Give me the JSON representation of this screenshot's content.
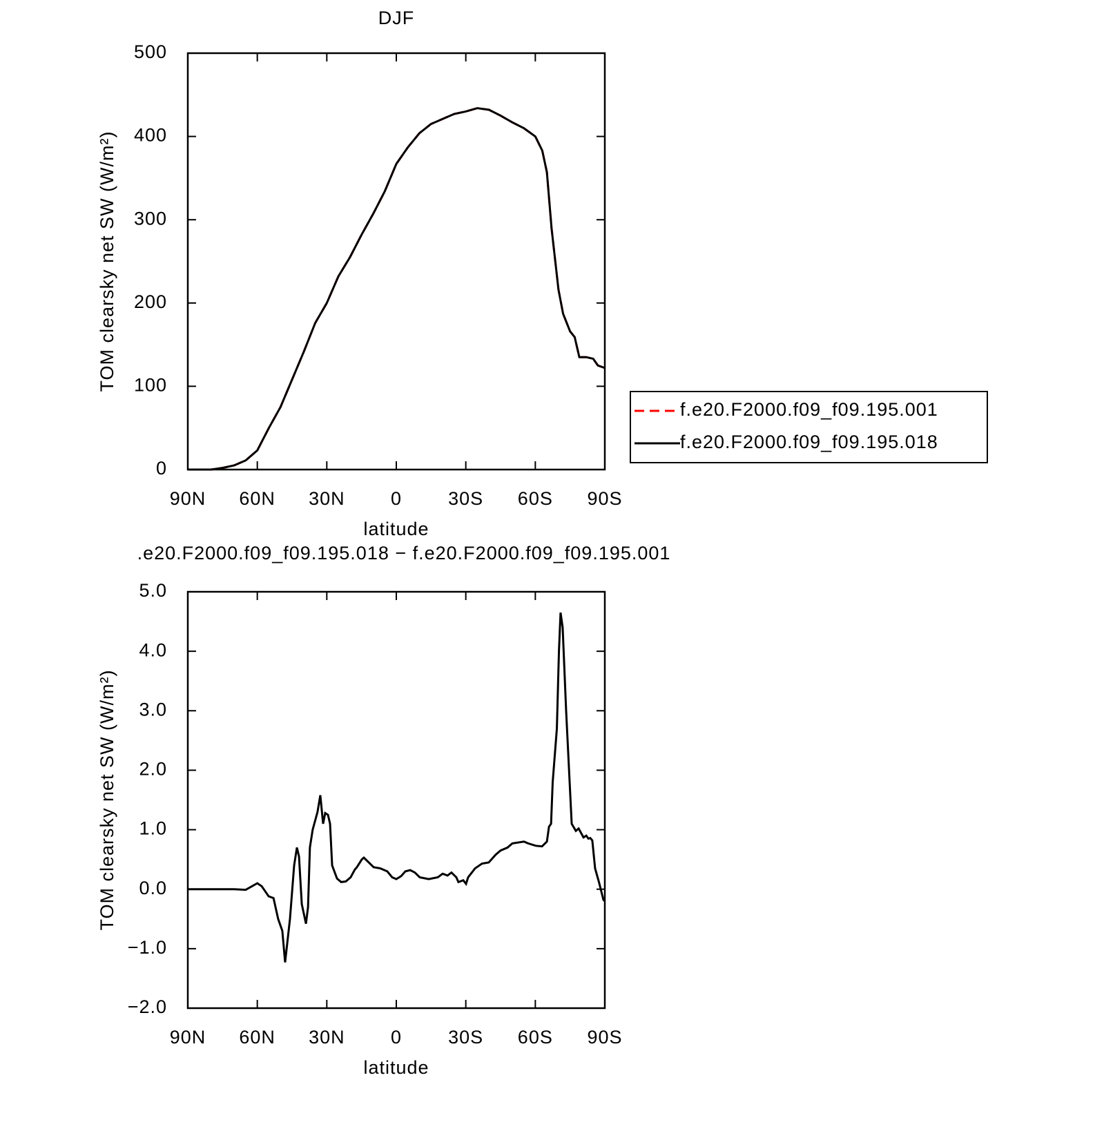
{
  "chart_data": [
    {
      "type": "line",
      "title": "DJF",
      "xlabel": "latitude",
      "ylabel": "TOM clearsky net SW (W/m²)",
      "x": [
        90,
        80,
        75,
        70,
        65,
        60,
        55,
        50,
        45,
        40,
        35,
        30,
        25,
        20,
        15,
        10,
        5,
        0,
        -5,
        -10,
        -15,
        -20,
        -25,
        -30,
        -35,
        -40,
        -45,
        -50,
        -55,
        -60,
        -63,
        -65,
        -67,
        -70,
        -72,
        -75,
        -77,
        -79,
        -82,
        -85,
        -87,
        -90
      ],
      "series": [
        {
          "name": "f.e20.F2000.f09_f09.195.001",
          "color": "#ff0000",
          "line_style": "dashed",
          "values": [
            0,
            0,
            2,
            5,
            11,
            23,
            50,
            75,
            108,
            141,
            176,
            200,
            232,
            255,
            282,
            307,
            334,
            367,
            387,
            404,
            415,
            421,
            427,
            430,
            434,
            432,
            425,
            417,
            410,
            400,
            383,
            357,
            290,
            216,
            187,
            166,
            159,
            135,
            135,
            133,
            125,
            122
          ]
        },
        {
          "name": "f.e20.F2000.f09_f09.195.018",
          "color": "#000000",
          "line_style": "solid",
          "values": [
            0,
            0,
            2,
            5,
            11,
            23,
            50,
            75,
            108,
            141,
            176,
            200,
            232,
            255,
            282,
            307,
            334,
            367,
            387,
            404,
            415,
            421,
            427,
            430,
            434,
            432,
            425,
            417,
            410,
            400,
            383,
            357,
            290,
            216,
            187,
            166,
            159,
            135,
            135,
            133,
            125,
            122
          ]
        }
      ],
      "xlim": [
        90,
        -90
      ],
      "xticks": [
        {
          "value": 90,
          "label": "90N"
        },
        {
          "value": 60,
          "label": "60N"
        },
        {
          "value": 30,
          "label": "30N"
        },
        0,
        {
          "value": -30,
          "label": "30S"
        },
        {
          "value": -60,
          "label": "60S"
        },
        {
          "value": -90,
          "label": "90S"
        }
      ],
      "ylim": [
        0,
        500
      ],
      "yticks": [
        0,
        100,
        200,
        300,
        400,
        500
      ],
      "legend": "right"
    },
    {
      "type": "line",
      "title": ".e20.F2000.f09_f09.195.018 − f.e20.F2000.f09_f09.195.001",
      "xlabel": "latitude",
      "ylabel": "TOM clearsky net SW (W/m²)",
      "x": [
        90,
        70,
        65,
        60,
        58.1,
        55.1,
        53,
        51,
        49.2,
        48,
        45.9,
        44.1,
        42.9,
        42,
        40.8,
        39,
        38.1,
        37.3,
        36.1,
        34,
        32.8,
        31.6,
        30.7,
        29.5,
        28.6,
        27.7,
        25.6,
        23.8,
        21.8,
        19.7,
        17.9,
        17,
        14.9,
        14,
        11.9,
        9.8,
        6.9,
        3.9,
        1.8,
        0,
        -2.1,
        -3.9,
        -6,
        -8,
        -10.1,
        -14,
        -17.9,
        -20,
        -22.1,
        -23.8,
        -25.9,
        -26.8,
        -28.9,
        -30.1,
        -31,
        -34,
        -37,
        -39.9,
        -42.9,
        -45,
        -48,
        -50.1,
        -55.1,
        -56.9,
        -60.2,
        -62.9,
        -65,
        -65.9,
        -66.8,
        -67.5,
        -69.3,
        -70.2,
        -70.9,
        -71.8,
        -73.3,
        -75.7,
        -77.5,
        -78.7,
        -80.8,
        -82,
        -82.9,
        -83.7,
        -84.6,
        -85.8,
        -87.6,
        -89.4,
        -90
      ],
      "series": [
        {
          "color": "#000000",
          "line_style": "solid",
          "values": [
            0,
            0,
            -0.01,
            0.1,
            0.05,
            -0.12,
            -0.15,
            -0.5,
            -0.7,
            -1.23,
            -0.5,
            0.4,
            0.7,
            0.55,
            -0.25,
            -0.58,
            -0.3,
            0.7,
            1.0,
            1.3,
            1.58,
            1.1,
            1.28,
            1.25,
            1.1,
            0.4,
            0.18,
            0.12,
            0.13,
            0.2,
            0.33,
            0.37,
            0.5,
            0.53,
            0.45,
            0.37,
            0.35,
            0.3,
            0.2,
            0.17,
            0.22,
            0.3,
            0.32,
            0.28,
            0.2,
            0.17,
            0.2,
            0.26,
            0.23,
            0.28,
            0.2,
            0.12,
            0.15,
            0.09,
            0.2,
            0.35,
            0.43,
            0.45,
            0.58,
            0.65,
            0.7,
            0.77,
            0.8,
            0.77,
            0.73,
            0.72,
            0.8,
            1.05,
            1.1,
            1.8,
            2.7,
            4.0,
            4.65,
            4.4,
            3.0,
            1.1,
            0.98,
            1.02,
            0.87,
            0.9,
            0.85,
            0.86,
            0.82,
            0.35,
            0.1,
            -0.18,
            -0.2
          ]
        }
      ],
      "xlim": [
        90,
        -90
      ],
      "xticks": [
        {
          "value": 90,
          "label": "90N"
        },
        {
          "value": 60,
          "label": "60N"
        },
        {
          "value": 30,
          "label": "30N"
        },
        0,
        {
          "value": -30,
          "label": "30S"
        },
        {
          "value": -60,
          "label": "60S"
        },
        {
          "value": -90,
          "label": "90S"
        }
      ],
      "ylim": [
        -2,
        5
      ],
      "yticks": [
        {
          "value": -2,
          "label": "−2.0"
        },
        {
          "value": -1,
          "label": "−1.0"
        },
        {
          "value": 0,
          "label": "0.0"
        },
        {
          "value": 1,
          "label": "1.0"
        },
        {
          "value": 2,
          "label": "2.0"
        },
        {
          "value": 3,
          "label": "3.0"
        },
        {
          "value": 4,
          "label": "4.0"
        },
        {
          "value": 5,
          "label": "5.0"
        }
      ]
    }
  ]
}
